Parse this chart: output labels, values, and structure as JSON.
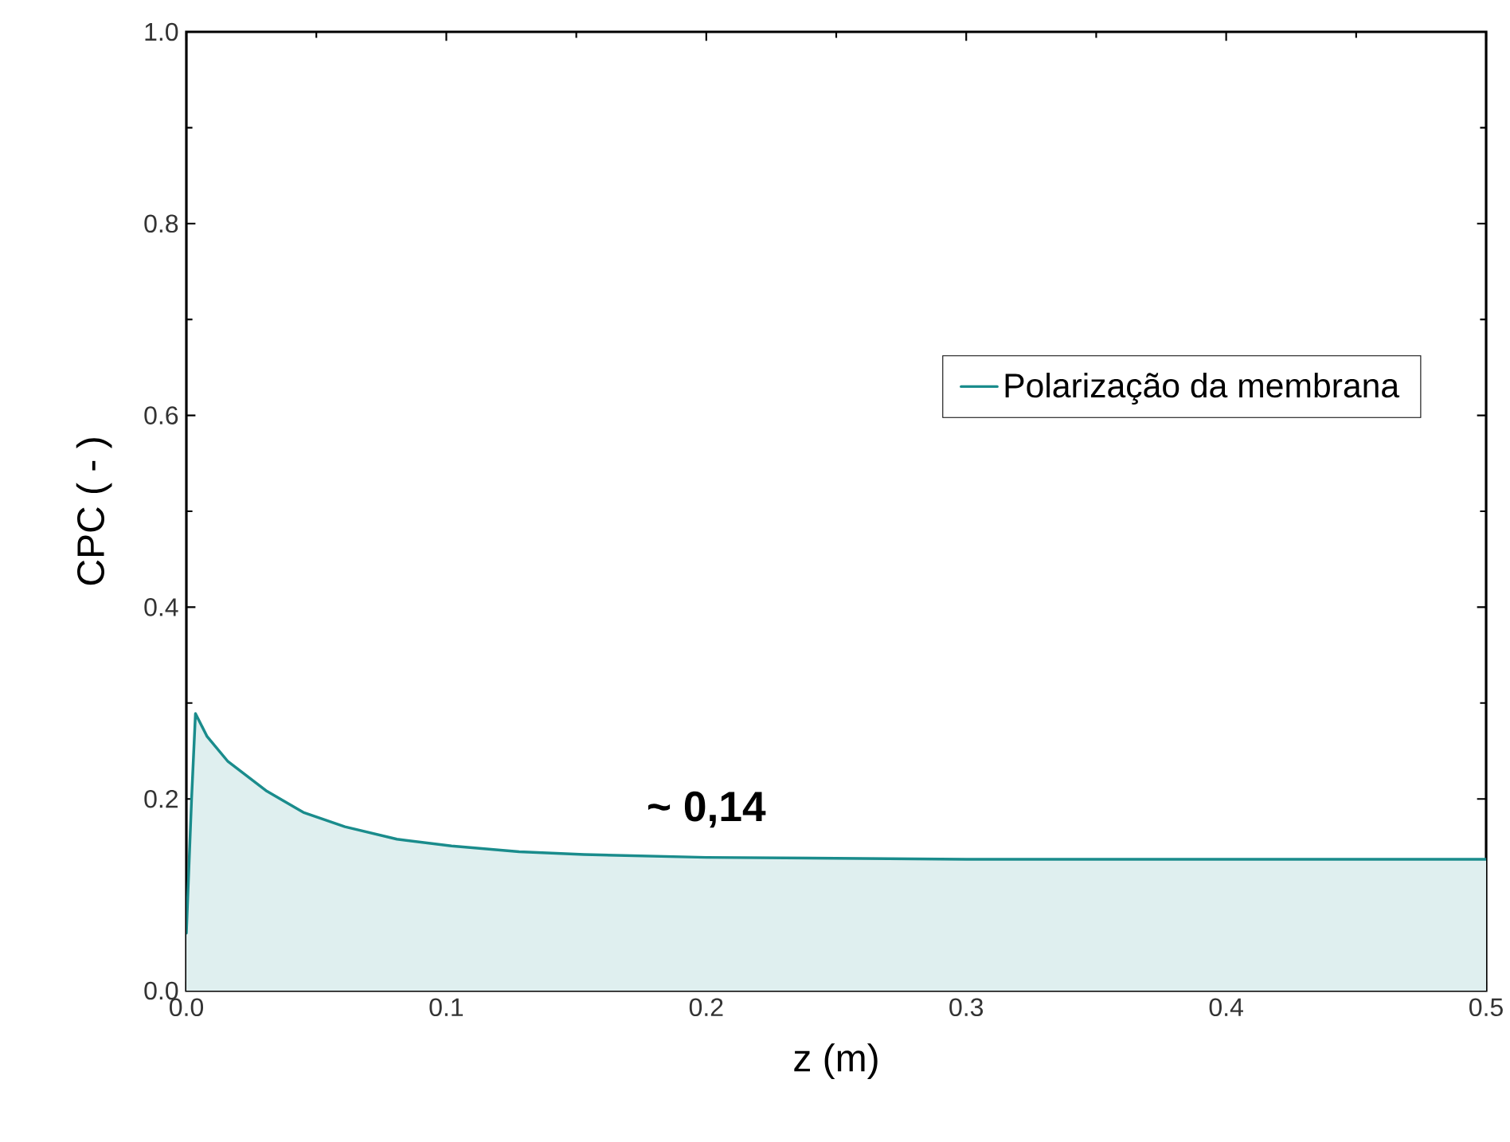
{
  "chart_data": {
    "type": "area",
    "xlabel": "z (m)",
    "ylabel": "CPC ( - )",
    "x": [
      0,
      0.001,
      0.002,
      0.0035,
      0.008,
      0.016,
      0.031,
      0.045,
      0.061,
      0.081,
      0.102,
      0.128,
      0.153,
      0.2,
      0.25,
      0.3,
      0.4,
      0.5
    ],
    "series": [
      {
        "name": "Polarização da membrana",
        "color": "#1a8c8c",
        "values": [
          0.06,
          0.13,
          0.2,
          0.289,
          0.265,
          0.239,
          0.208,
          0.186,
          0.171,
          0.158,
          0.151,
          0.145,
          0.142,
          0.139,
          0.138,
          0.137,
          0.137,
          0.137
        ]
      }
    ],
    "xlim": [
      0,
      0.5
    ],
    "ylim": [
      0,
      1
    ],
    "xticks": [
      {
        "value": 0,
        "label": "0.0"
      },
      {
        "value": 0.1,
        "label": "0.1"
      },
      {
        "value": 0.2,
        "label": "0.2"
      },
      {
        "value": 0.3,
        "label": "0.3"
      },
      {
        "value": 0.4,
        "label": "0.4"
      },
      {
        "value": 0.5,
        "label": "0.5"
      }
    ],
    "yticks": [
      {
        "value": 0,
        "label": "0.0"
      },
      {
        "value": 0.2,
        "label": "0.2"
      },
      {
        "value": 0.4,
        "label": "0.4"
      },
      {
        "value": 0.6,
        "label": "0.6"
      },
      {
        "value": 0.8,
        "label": "0.8"
      },
      {
        "value": 1,
        "label": "1.0"
      }
    ],
    "annotations": [
      {
        "text": "~ 0,14",
        "x": 0.2,
        "y": 0.14
      }
    ],
    "legend": "right",
    "grid": false,
    "marker": "none",
    "line_style": "solid"
  }
}
